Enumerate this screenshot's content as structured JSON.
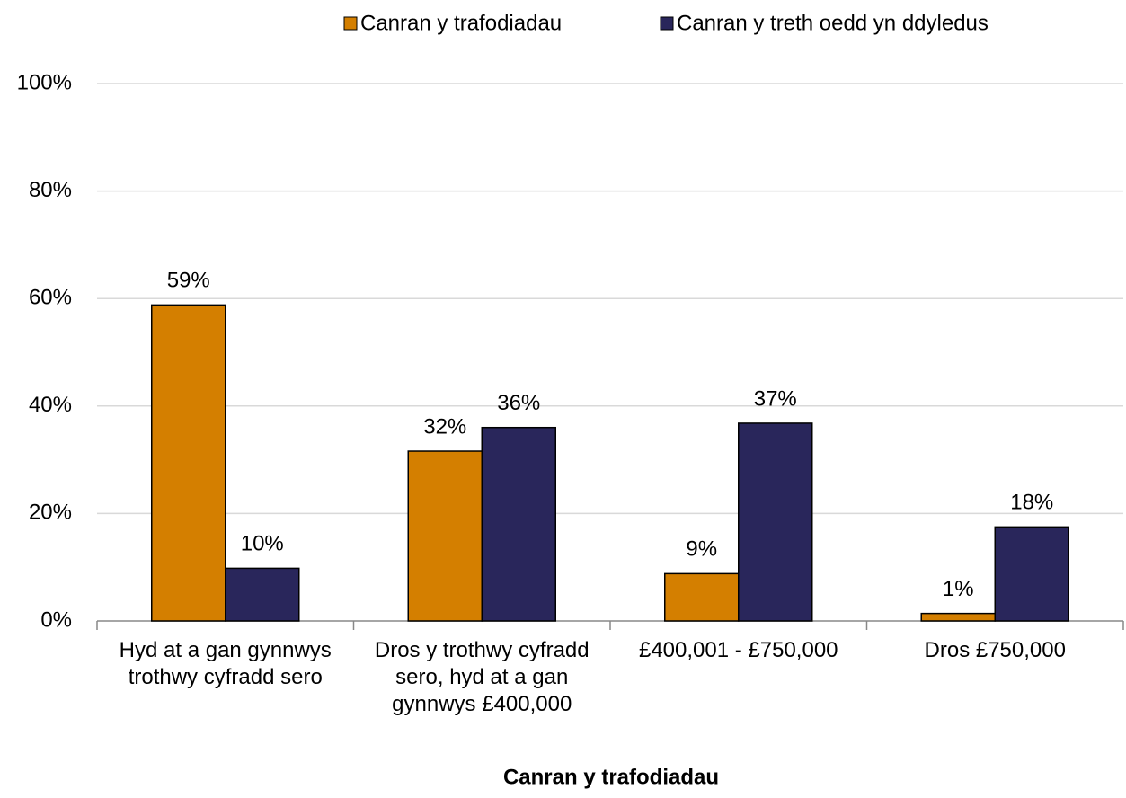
{
  "chart_data": {
    "type": "bar",
    "x_label": "Canran y trafodiadau",
    "categories": [
      "Hyd at a gan gynnwys trothwy cyfradd sero",
      "Dros y trothwy cyfradd sero, hyd at a gan gynnwys £400,000",
      "£400,001 - £750,000",
      "Dros £750,000"
    ],
    "series": [
      {
        "name": "Canran y trafodiadau",
        "color": "#d47f00",
        "values": [
          58.8,
          31.6,
          8.8,
          1.4
        ],
        "value_labels": [
          "59%",
          "32%",
          "9%",
          "1%"
        ]
      },
      {
        "name": "Canran y treth oedd yn ddyledus",
        "color": "#29265b",
        "values": [
          9.8,
          36,
          36.8,
          17.5
        ],
        "value_labels": [
          "10%",
          "36%",
          "37%",
          "18%"
        ]
      }
    ],
    "ylim": [
      0,
      100
    ],
    "yticks": [
      {
        "value": 0,
        "label": "0%"
      },
      {
        "value": 20,
        "label": "20%"
      },
      {
        "value": 40,
        "label": "40%"
      },
      {
        "value": 60,
        "label": "60%"
      },
      {
        "value": 80,
        "label": "80%"
      },
      {
        "value": 100,
        "label": "100%"
      }
    ],
    "grid": true,
    "legend": "top"
  }
}
